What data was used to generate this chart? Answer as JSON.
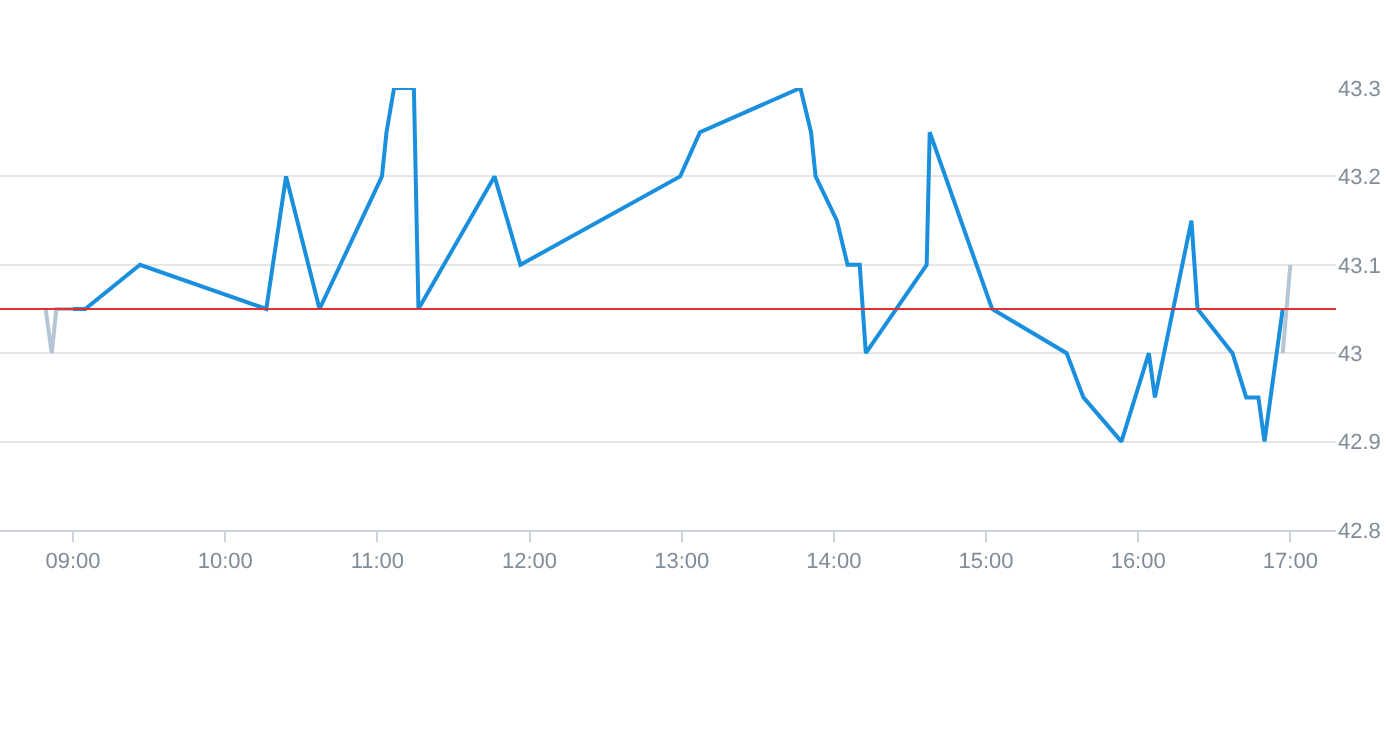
{
  "chart_data": {
    "type": "line",
    "xlim": [
      8.52,
      17.3
    ],
    "ylim": [
      42.8,
      43.3
    ],
    "xticks": [
      {
        "value": 9,
        "label": "09:00"
      },
      {
        "value": 10,
        "label": "10:00"
      },
      {
        "value": 11,
        "label": "11:00"
      },
      {
        "value": 12,
        "label": "12:00"
      },
      {
        "value": 13,
        "label": "13:00"
      },
      {
        "value": 14,
        "label": "14:00"
      },
      {
        "value": 15,
        "label": "15:00"
      },
      {
        "value": 16,
        "label": "16:00"
      },
      {
        "value": 17,
        "label": "17:00"
      }
    ],
    "yticks": [
      42.8,
      42.9,
      {
        "value": 43,
        "label": "43"
      },
      43.1,
      43.2,
      43.3
    ],
    "grid": "y",
    "marker": "none",
    "line_style": "solid",
    "series": [
      {
        "color": "#b4c6d6",
        "x": [
          8.82,
          8.86,
          8.89,
          9.0
        ],
        "values": [
          43.05,
          43.0,
          43.05,
          43.05
        ]
      },
      {
        "color": "#1a8fdd",
        "x": [
          9.0,
          9.08,
          9.44,
          10.27,
          10.4,
          10.62,
          11.03,
          11.06,
          11.11,
          11.24,
          11.27,
          11.77,
          11.94,
          12.99,
          13.12,
          13.78,
          13.85,
          13.88,
          14.02,
          14.09,
          14.17,
          14.21,
          14.61,
          14.63,
          15.04,
          15.53,
          15.64,
          15.89,
          16.07,
          16.11,
          16.35,
          16.39,
          16.62,
          16.71,
          16.79,
          16.83,
          16.95
        ],
        "values": [
          43.05,
          43.05,
          43.1,
          43.05,
          43.2,
          43.05,
          43.2,
          43.25,
          43.3,
          43.3,
          43.05,
          43.2,
          43.1,
          43.2,
          43.25,
          43.3,
          43.25,
          43.2,
          43.15,
          43.1,
          43.1,
          43.0,
          43.1,
          43.25,
          43.05,
          43.0,
          42.95,
          42.9,
          43.0,
          42.95,
          43.15,
          43.05,
          43.0,
          42.95,
          42.95,
          42.9,
          43.05
        ]
      },
      {
        "color": "#b4c6d6",
        "x": [
          16.95,
          17.0
        ],
        "values": [
          43.0,
          43.1
        ]
      }
    ],
    "ref_lines": [
      {
        "axis": "y",
        "value": 43.05,
        "color": "#e03030",
        "line_style": "solid"
      }
    ]
  }
}
